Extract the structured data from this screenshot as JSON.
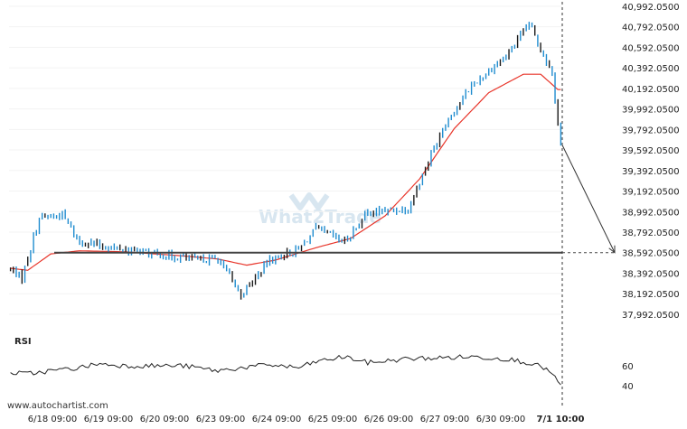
{
  "chart_data": [
    {
      "type": "candlestick",
      "y_axis_side": "right",
      "y_ticks": [
        "40,992.0500",
        "40,792.0500",
        "40,592.0500",
        "40,392.0500",
        "40,192.0500",
        "39,992.0500",
        "39,792.0500",
        "39,592.0500",
        "39,392.0500",
        "39,192.0500",
        "38,992.0500",
        "38,792.0500",
        "38,592.0500",
        "38,392.0500",
        "38,192.0500",
        "37,992.0500"
      ],
      "ylim": [
        37930,
        41000
      ],
      "x_ticks": [
        "6/18 09:00",
        "6/19 09:00",
        "6/20 09:00",
        "6/23 09:00",
        "6/24 09:00",
        "6/25 09:00",
        "6/26 09:00",
        "6/27 09:00",
        "6/30 09:00",
        "7/1 10:00"
      ],
      "key_level": 38592.05,
      "key_level_label": "38,592.0500",
      "projected_target": 38592.05,
      "forecast_time": "7/1 10:00",
      "bar_count": 192,
      "price_path": [
        [
          0,
          38430
        ],
        [
          4,
          38350
        ],
        [
          10,
          38930
        ],
        [
          18,
          38960
        ],
        [
          24,
          38700
        ],
        [
          40,
          38620
        ],
        [
          55,
          38560
        ],
        [
          64,
          38530
        ],
        [
          72,
          38530
        ],
        [
          80,
          38180
        ],
        [
          90,
          38520
        ],
        [
          100,
          38620
        ],
        [
          106,
          38820
        ],
        [
          116,
          38700
        ],
        [
          124,
          38980
        ],
        [
          138,
          39020
        ],
        [
          150,
          39810
        ],
        [
          160,
          40220
        ],
        [
          172,
          40510
        ],
        [
          180,
          40820
        ],
        [
          188,
          40340
        ],
        [
          191,
          39640
        ]
      ],
      "ma_path": [
        [
          0,
          38440
        ],
        [
          6,
          38420
        ],
        [
          14,
          38580
        ],
        [
          24,
          38610
        ],
        [
          40,
          38600
        ],
        [
          60,
          38560
        ],
        [
          72,
          38530
        ],
        [
          82,
          38470
        ],
        [
          92,
          38520
        ],
        [
          106,
          38640
        ],
        [
          118,
          38730
        ],
        [
          130,
          38950
        ],
        [
          142,
          39310
        ],
        [
          154,
          39800
        ],
        [
          166,
          40150
        ],
        [
          178,
          40330
        ],
        [
          184,
          40330
        ],
        [
          190,
          40180
        ]
      ],
      "colors": {
        "candle": "#1f8ccf",
        "candle_dark": "#1a1a1a",
        "moving_average": "#e8352a",
        "key_level": "#444444",
        "forecast_line": "#333333"
      }
    },
    {
      "type": "line",
      "title": "RSI",
      "y_ticks": [
        "60",
        "40"
      ],
      "ylim": [
        33,
        78
      ],
      "rsi_path": [
        [
          0,
          53
        ],
        [
          6,
          52
        ],
        [
          14,
          55
        ],
        [
          24,
          58
        ],
        [
          30,
          62
        ],
        [
          40,
          60
        ],
        [
          60,
          60
        ],
        [
          72,
          55
        ],
        [
          80,
          58
        ],
        [
          90,
          61
        ],
        [
          100,
          58
        ],
        [
          106,
          64
        ],
        [
          116,
          69
        ],
        [
          124,
          63
        ],
        [
          138,
          67
        ],
        [
          150,
          68
        ],
        [
          160,
          69
        ],
        [
          172,
          67
        ],
        [
          180,
          63
        ],
        [
          186,
          57
        ],
        [
          191,
          41
        ]
      ],
      "colors": {
        "line": "#222222"
      }
    }
  ],
  "watermark": "What2Trade",
  "site_label": "www.autochartist.com"
}
